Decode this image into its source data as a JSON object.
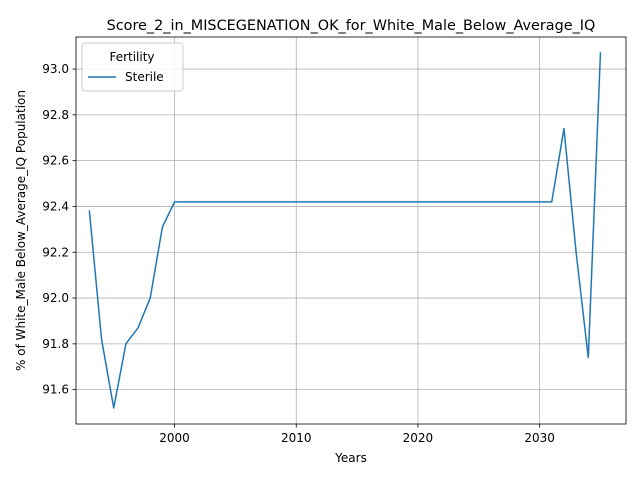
{
  "chart_data": {
    "type": "line",
    "title": "Score_2_in_MISCEGENATION_OK_for_White_Male_Below_Average_IQ",
    "xlabel": "Years",
    "ylabel": "% of White_Male Below_Average_IQ Population",
    "xlim": [
      1991.9,
      2037.1
    ],
    "ylim": [
      91.45,
      93.14
    ],
    "xticks": [
      2000,
      2010,
      2020,
      2030
    ],
    "yticks": [
      91.6,
      91.8,
      92.0,
      92.2,
      92.4,
      92.6,
      92.8,
      93.0
    ],
    "grid": true,
    "legend": {
      "title": "Fertility",
      "placement": "top-left"
    },
    "series": [
      {
        "name": "Sterile",
        "color": "#1f77b4",
        "x": [
          1993,
          1994,
          1995,
          1996,
          1997,
          1998,
          1999,
          2000,
          2001,
          2005,
          2010,
          2015,
          2020,
          2025,
          2030,
          2031,
          2032,
          2033,
          2034,
          2035
        ],
        "y": [
          92.38,
          91.82,
          91.52,
          91.8,
          91.87,
          92.0,
          92.31,
          92.42,
          92.42,
          92.42,
          92.42,
          92.42,
          92.42,
          92.42,
          92.42,
          92.42,
          92.74,
          92.2,
          91.74,
          93.07
        ]
      }
    ]
  }
}
